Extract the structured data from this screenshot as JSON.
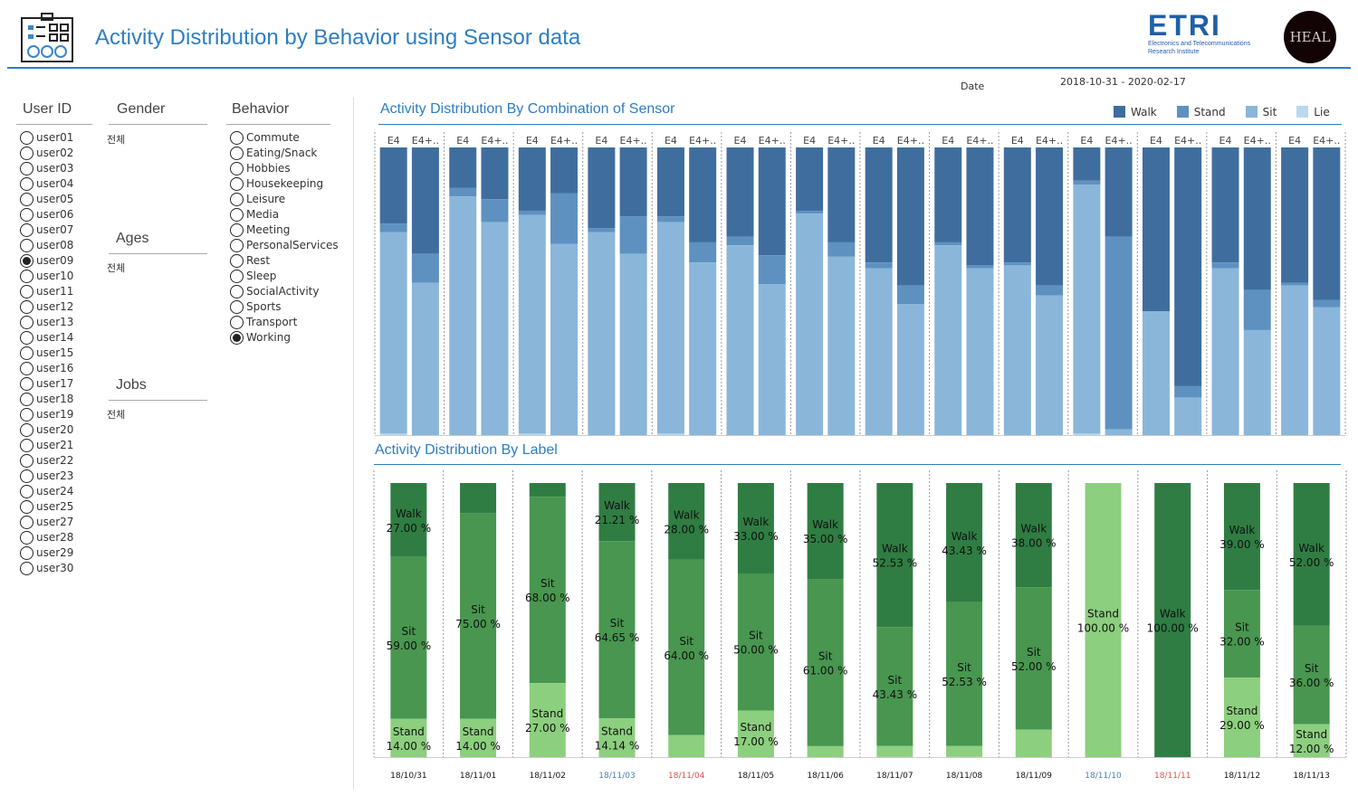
{
  "header": {
    "title": "Activity Distribution by Behavior using Sensor data",
    "logo_icon": "dashboard-icon",
    "etri_name": "ETRI",
    "etri_sub1": "Electronics and Telecommunications",
    "etri_sub2": "Research Institute",
    "heal_name": "HEAL"
  },
  "date": {
    "label": "Date",
    "value": "2018-10-31 - 2020-02-17"
  },
  "filters": {
    "user_id": {
      "label": "User ID",
      "selected": "user09",
      "options": [
        "user01",
        "user02",
        "user03",
        "user04",
        "user05",
        "user06",
        "user07",
        "user08",
        "user09",
        "user10",
        "user11",
        "user12",
        "user13",
        "user14",
        "user15",
        "user16",
        "user17",
        "user18",
        "user19",
        "user20",
        "user21",
        "user22",
        "user23",
        "user24",
        "user25",
        "user27",
        "user28",
        "user29",
        "user30"
      ]
    },
    "gender": {
      "label": "Gender",
      "value": "전체"
    },
    "ages": {
      "label": "Ages",
      "value": "전체"
    },
    "jobs": {
      "label": "Jobs",
      "value": "전체"
    },
    "behavior": {
      "label": "Behavior",
      "selected": "Working",
      "options": [
        "Commute",
        "Eating/Snack",
        "Hobbies",
        "Housekeeping",
        "Leisure",
        "Media",
        "Meeting",
        "PersonalServices",
        "Rest",
        "Sleep",
        "SocialActivity",
        "Sports",
        "Transport",
        "Working"
      ]
    }
  },
  "sensor_chart": {
    "title": "Activity Distribution By Combination of Sensor",
    "legend": [
      "Walk",
      "Stand",
      "Sit",
      "Lie"
    ],
    "colors": {
      "Walk": "#3f6e9e",
      "Stand": "#5e91c0",
      "Sit": "#8ab6da",
      "Lie": "#b9d8ef"
    }
  },
  "label_chart": {
    "title": "Activity Distribution By Label",
    "colors": {
      "Walk": "#2f7d43",
      "Sit": "#48964f",
      "Stand": "#8ccf7e"
    }
  },
  "chart_data": [
    {
      "type": "bar",
      "stacked": true,
      "title": "Activity Distribution By Combination of Sensor",
      "series_names": [
        "Walk",
        "Stand",
        "Sit",
        "Lie"
      ],
      "legend_position": "top-right",
      "groups": [
        "18/10/31",
        "18/11/01",
        "18/11/02",
        "18/11/03",
        "18/11/04",
        "18/11/05",
        "18/11/06",
        "18/11/07",
        "18/11/08",
        "18/11/09",
        "18/11/10",
        "18/11/11",
        "18/11/12",
        "18/11/13"
      ],
      "bar_labels": [
        "E4",
        "E4+.."
      ],
      "bars": [
        [
          26.5,
          3,
          70,
          0.5
        ],
        [
          37,
          10,
          53,
          0
        ],
        [
          14,
          3,
          83,
          0
        ],
        [
          18,
          8,
          74,
          0
        ],
        [
          22,
          1.5,
          76,
          0.5
        ],
        [
          16,
          17.5,
          66.5,
          0
        ],
        [
          28,
          1.5,
          70.5,
          0
        ],
        [
          24,
          13,
          63,
          0
        ],
        [
          24,
          2,
          73.5,
          0.5
        ],
        [
          33,
          7,
          60,
          0
        ],
        [
          31,
          3,
          66,
          0
        ],
        [
          37.5,
          10,
          52.5,
          0
        ],
        [
          22,
          1,
          77,
          0
        ],
        [
          33,
          5,
          62,
          0
        ],
        [
          40,
          2,
          58,
          0
        ],
        [
          48,
          6.5,
          45.5,
          0
        ],
        [
          33,
          1,
          66,
          0
        ],
        [
          41,
          1,
          58,
          0
        ],
        [
          40,
          1,
          59,
          0
        ],
        [
          48,
          3.5,
          48.5,
          0
        ],
        [
          11.5,
          1.5,
          86.5,
          0.5
        ],
        [
          31,
          67,
          2,
          0
        ],
        [
          57,
          0,
          43,
          0
        ],
        [
          83,
          4,
          13,
          0
        ],
        [
          40,
          2,
          58,
          0
        ],
        [
          49.5,
          14,
          36.5,
          0
        ],
        [
          47,
          1,
          52,
          0
        ],
        [
          53,
          2.5,
          44.5,
          0
        ]
      ],
      "ylim": [
        0,
        100
      ]
    },
    {
      "type": "bar",
      "stacked": true,
      "title": "Activity Distribution By Label",
      "categories": [
        "18/10/31",
        "18/11/01",
        "18/11/02",
        "18/11/03",
        "18/11/04",
        "18/11/05",
        "18/11/06",
        "18/11/07",
        "18/11/08",
        "18/11/09",
        "18/11/10",
        "18/11/11",
        "18/11/12",
        "18/11/13"
      ],
      "category_colors": [
        "#111111",
        "#111111",
        "#111111",
        "#4a7fb7",
        "#d9534f",
        "#111111",
        "#111111",
        "#111111",
        "#111111",
        "#111111",
        "#4a7fb7",
        "#d9534f",
        "#111111",
        "#111111"
      ],
      "series": [
        {
          "name": "Walk",
          "values": [
            27.0,
            11,
            5,
            21.21,
            28.0,
            33.0,
            35.0,
            52.53,
            43.43,
            38.0,
            0,
            100.0,
            39.0,
            52.0
          ],
          "labels": [
            "Walk\n27.00 %",
            "",
            "",
            "Walk\n21.21 %",
            "Walk\n28.00 %",
            "Walk\n33.00 %",
            "Walk\n35.00 %",
            "Walk\n52.53 %",
            "Walk\n43.43 %",
            "Walk\n38.00 %",
            "",
            "Walk\n100.00 %",
            "Walk\n39.00 %",
            "Walk\n52.00 %"
          ]
        },
        {
          "name": "Sit",
          "values": [
            59.0,
            75.0,
            68.0,
            64.65,
            64.0,
            50.0,
            61.0,
            43.43,
            52.53,
            52.0,
            0,
            0,
            32.0,
            36.0
          ],
          "labels": [
            "Sit\n59.00 %",
            "Sit\n75.00 %",
            "Sit\n68.00 %",
            "Sit\n64.65 %",
            "Sit\n64.00 %",
            "Sit\n50.00 %",
            "Sit\n61.00 %",
            "Sit\n43.43 %",
            "Sit\n52.53 %",
            "Sit\n52.00 %",
            "",
            "",
            "Sit\n32.00 %",
            "Sit\n36.00 %"
          ]
        },
        {
          "name": "Stand",
          "values": [
            14.0,
            14.0,
            27.0,
            14.14,
            8,
            17.0,
            4,
            4,
            4,
            10,
            100.0,
            0,
            29.0,
            12.0
          ],
          "labels": [
            "Stand\n14.00 %",
            "Stand\n14.00 %",
            "Stand\n27.00 %",
            "Stand\n14.14 %",
            "",
            "Stand\n17.00 %",
            "",
            "",
            "",
            "",
            "Stand\n100.00 %",
            "",
            "Stand\n29.00 %",
            "Stand\n12.00 %"
          ]
        }
      ],
      "ylim": [
        0,
        100
      ]
    }
  ]
}
